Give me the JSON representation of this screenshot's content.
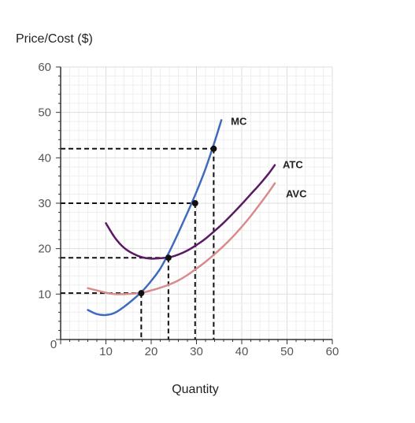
{
  "chart_data": {
    "type": "line",
    "title": "",
    "xlabel": "Quantity",
    "ylabel": "Price/Cost ($)",
    "xlim": [
      0,
      60
    ],
    "ylim": [
      0,
      60
    ],
    "x_ticks": [
      10,
      20,
      30,
      40,
      50,
      60
    ],
    "y_ticks": [
      10,
      20,
      30,
      40,
      50,
      60
    ],
    "origin_label": "0",
    "grid": true,
    "series": [
      {
        "name": "MC",
        "color": "#3f6bbf",
        "x": [
          6,
          8,
          10,
          12,
          14,
          16,
          18,
          20,
          22,
          24,
          26,
          28,
          30,
          32,
          34,
          35.5
        ],
        "y": [
          6.5,
          5.6,
          5.4,
          5.9,
          7.2,
          8.8,
          10.6,
          12.9,
          15.6,
          19.3,
          23.5,
          27.9,
          32.5,
          37.6,
          43.5,
          48.3
        ]
      },
      {
        "name": "ATC",
        "color": "#5b1a63",
        "x": [
          10,
          12,
          14,
          16,
          18,
          20,
          22,
          24,
          26,
          28,
          30,
          32,
          34,
          36,
          38,
          40,
          42,
          44,
          46,
          47.3
        ],
        "y": [
          25.6,
          22.4,
          20.2,
          18.9,
          18.1,
          17.8,
          17.9,
          18.1,
          18.7,
          19.6,
          20.8,
          22.2,
          23.9,
          25.7,
          27.7,
          29.8,
          32.0,
          34.2,
          36.6,
          38.4
        ]
      },
      {
        "name": "AVC",
        "color": "#d88b8b",
        "x": [
          6,
          8,
          10,
          12,
          14,
          16,
          18,
          20,
          22,
          24,
          26,
          28,
          30,
          32,
          34,
          36,
          38,
          40,
          42,
          44,
          46,
          47.3
        ],
        "y": [
          11.3,
          10.8,
          10.3,
          10.0,
          10.0,
          10.1,
          10.3,
          10.8,
          11.4,
          12.1,
          13.0,
          14.2,
          15.6,
          17.1,
          18.8,
          20.6,
          22.6,
          24.8,
          27.2,
          29.8,
          32.5,
          34.4
        ]
      }
    ],
    "points": [
      {
        "x": 17.8,
        "y": 10.2
      },
      {
        "x": 23.8,
        "y": 18.0
      },
      {
        "x": 29.7,
        "y": 30.0
      },
      {
        "x": 33.8,
        "y": 42.0
      }
    ],
    "reference_lines": [
      {
        "x": 17.8,
        "y": 10.2
      },
      {
        "x": 23.8,
        "y": 18.0
      },
      {
        "x": 29.7,
        "y": 30.0
      },
      {
        "x": 33.8,
        "y": 42.0
      }
    ],
    "labels": [
      {
        "text": "MC",
        "series": "MC"
      },
      {
        "text": "ATC",
        "series": "ATC"
      },
      {
        "text": "AVC",
        "series": "AVC"
      }
    ]
  }
}
